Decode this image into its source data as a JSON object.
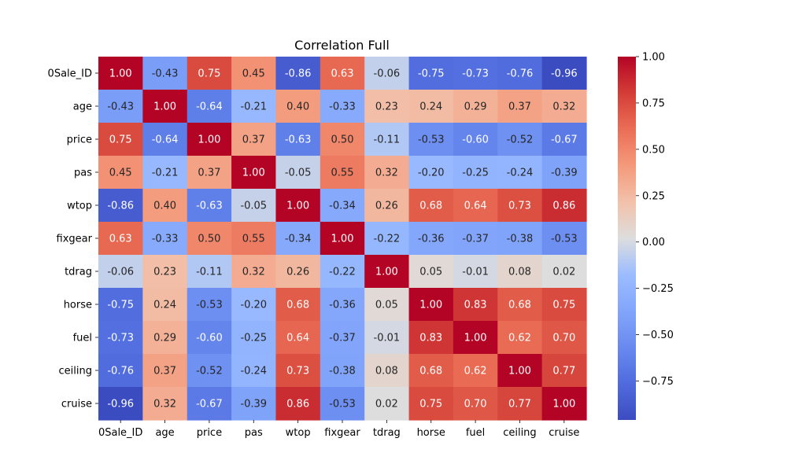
{
  "chart_data": {
    "type": "heatmap",
    "title": "Correlation Full",
    "rows": [
      "0Sale_ID",
      "age",
      "price",
      "pas",
      "wtop",
      "fixgear",
      "tdrag",
      "horse",
      "fuel",
      "ceiling",
      "cruise"
    ],
    "columns": [
      "0Sale_ID",
      "age",
      "price",
      "pas",
      "wtop",
      "fixgear",
      "tdrag",
      "horse",
      "fuel",
      "ceiling",
      "cruise"
    ],
    "values": [
      [
        1.0,
        -0.43,
        0.75,
        0.45,
        -0.86,
        0.63,
        -0.06,
        -0.75,
        -0.73,
        -0.76,
        -0.96
      ],
      [
        -0.43,
        1.0,
        -0.64,
        -0.21,
        0.4,
        -0.33,
        0.23,
        0.24,
        0.29,
        0.37,
        0.32
      ],
      [
        0.75,
        -0.64,
        1.0,
        0.37,
        -0.63,
        0.5,
        -0.11,
        -0.53,
        -0.6,
        -0.52,
        -0.67
      ],
      [
        0.45,
        -0.21,
        0.37,
        1.0,
        -0.05,
        0.55,
        0.32,
        -0.2,
        -0.25,
        -0.24,
        -0.39
      ],
      [
        -0.86,
        0.4,
        -0.63,
        -0.05,
        1.0,
        -0.34,
        0.26,
        0.68,
        0.64,
        0.73,
        0.86
      ],
      [
        0.63,
        -0.33,
        0.5,
        0.55,
        -0.34,
        1.0,
        -0.22,
        -0.36,
        -0.37,
        -0.38,
        -0.53
      ],
      [
        -0.06,
        0.23,
        -0.11,
        0.32,
        0.26,
        -0.22,
        1.0,
        0.05,
        -0.01,
        0.08,
        0.02
      ],
      [
        -0.75,
        0.24,
        -0.53,
        -0.2,
        0.68,
        -0.36,
        0.05,
        1.0,
        0.83,
        0.68,
        0.75
      ],
      [
        -0.73,
        0.29,
        -0.6,
        -0.25,
        0.64,
        -0.37,
        -0.01,
        0.83,
        1.0,
        0.62,
        0.7
      ],
      [
        -0.76,
        0.37,
        -0.52,
        -0.24,
        0.73,
        -0.38,
        0.08,
        0.68,
        0.62,
        1.0,
        0.77
      ],
      [
        -0.96,
        0.32,
        -0.67,
        -0.39,
        0.86,
        -0.53,
        0.02,
        0.75,
        0.7,
        0.77,
        1.0
      ]
    ],
    "colormap": "coolwarm",
    "vmin": -0.96,
    "vmax": 1.0,
    "colorbar_ticks": [
      "1.00",
      "0.75",
      "0.50",
      "0.25",
      "0.00",
      "−0.25",
      "−0.50",
      "−0.75"
    ],
    "colorbar_tick_values": [
      1.0,
      0.75,
      0.5,
      0.25,
      0.0,
      -0.25,
      -0.5,
      -0.75
    ],
    "annotation_format": "2 decimals",
    "xlabel": "",
    "ylabel": ""
  }
}
